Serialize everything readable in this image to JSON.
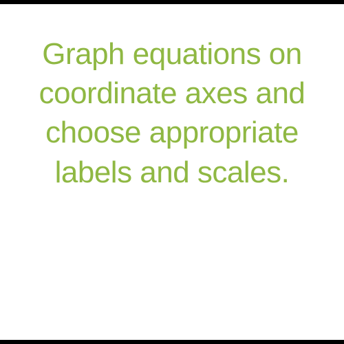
{
  "slide": {
    "text": "Graph equations on coordinate axes and choose appropriate labels and scales.",
    "text_color": "#8fb843",
    "background_color": "#ffffff",
    "font_size": 44,
    "font_weight": 400,
    "text_align": "center",
    "line_height": 1.3
  },
  "letterbox": {
    "color": "#000000",
    "height": 6
  }
}
